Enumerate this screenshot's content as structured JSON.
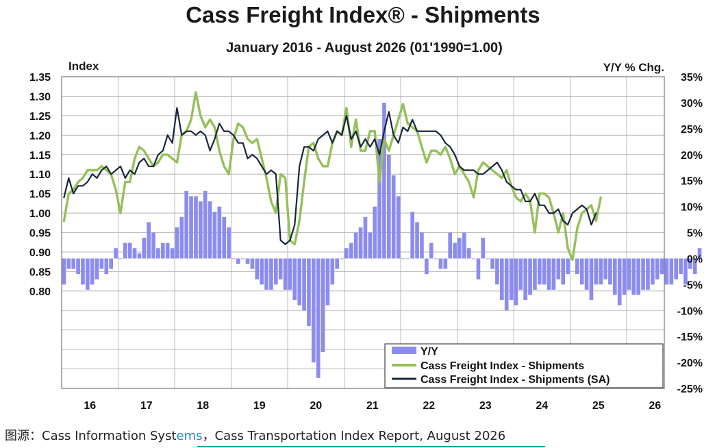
{
  "colors": {
    "yy_bar": "#8c8cf0",
    "shipments": "#94c05a",
    "shipments_sa": "#18263a",
    "grid": "#aaaaaa",
    "source_highlight": "#1e88c8"
  },
  "chart_data": {
    "type": "line",
    "title": "Cass Freight Index® - Shipments",
    "subtitle": "January 2016 - August 2026 (01'1990=1.00)",
    "ylabel_left": "Index",
    "ylabel_right": "Y/Y % Chg.",
    "left_axis": {
      "ticks": [
        "1.35",
        "1.30",
        "1.25",
        "1.20",
        "1.15",
        "1.10",
        "1.05",
        "1.00",
        "0.95",
        "0.90",
        "0.85",
        "0.80"
      ],
      "range": [
        0.55,
        1.35
      ]
    },
    "right_axis": {
      "ticks": [
        "35%",
        "30%",
        "25%",
        "20%",
        "15%",
        "10%",
        "5%",
        "0%",
        "-5%",
        "-10%",
        "-15%",
        "-20%",
        "-25%"
      ],
      "range": [
        -25,
        35
      ]
    },
    "x_tick_labels": [
      "16",
      "17",
      "18",
      "19",
      "20",
      "21",
      "22",
      "23",
      "24",
      "25",
      "26"
    ],
    "legend": [
      "Y/Y",
      "Cass Freight Index - Shipments",
      "Cass Freight Index - Shipments (SA)"
    ],
    "grid": true,
    "legend_position": "bottom-right",
    "series": [
      {
        "name": "Y/Y",
        "type": "bar",
        "axis": "right",
        "values": [
          -5,
          -2,
          -2,
          -3,
          -5,
          -6,
          -5,
          -4,
          -2,
          -3,
          -2,
          2,
          0,
          3,
          3,
          2,
          1,
          4,
          7,
          5,
          2,
          3,
          3,
          2,
          6,
          8,
          13,
          12,
          12,
          11,
          13,
          11,
          9,
          10,
          8,
          6,
          0,
          -1,
          0,
          -1,
          -2,
          -4,
          -5,
          -6,
          -6,
          -5,
          -4,
          -6,
          -6,
          -8,
          -9,
          -10,
          -13,
          -20,
          -23,
          -18,
          -9,
          -5,
          -2,
          0,
          2,
          3,
          5,
          6,
          8,
          5,
          10,
          23,
          30,
          20,
          16,
          12,
          0,
          0,
          9,
          7,
          5,
          -3,
          3,
          0,
          -2,
          -2,
          5,
          3,
          4,
          5,
          2,
          0,
          -4,
          4,
          0,
          -2,
          -5,
          -8,
          -10,
          -8,
          -9,
          -6,
          -8,
          -7,
          -6,
          -5,
          -5,
          -6,
          -6,
          -4,
          -5,
          -3,
          0,
          -3,
          -5,
          -6,
          -8,
          -5,
          -5,
          -4,
          -5,
          -7,
          -9,
          -7,
          -6,
          -7,
          -7,
          -6,
          -6,
          -5,
          -4,
          -3,
          -5,
          -5,
          -4,
          -3,
          -5,
          -2,
          -3,
          2
        ]
      },
      {
        "name": "Cass Freight Index - Shipments",
        "type": "line",
        "axis": "left",
        "values": [
          0.98,
          1.05,
          1.06,
          1.08,
          1.09,
          1.11,
          1.11,
          1.11,
          1.12,
          1.11,
          1.1,
          1.06,
          1.0,
          1.08,
          1.08,
          1.14,
          1.17,
          1.16,
          1.14,
          1.12,
          1.13,
          1.15,
          1.15,
          1.14,
          1.13,
          1.2,
          1.21,
          1.24,
          1.31,
          1.25,
          1.22,
          1.24,
          1.22,
          1.16,
          1.12,
          1.1,
          1.19,
          1.23,
          1.22,
          1.19,
          1.18,
          1.19,
          1.14,
          1.09,
          1.03,
          1.0,
          1.1,
          1.09,
          0.93,
          0.92,
          0.98,
          1.08,
          1.17,
          1.18,
          1.14,
          1.12,
          1.12,
          1.18,
          1.21,
          1.2,
          1.27,
          1.17,
          1.24,
          1.16,
          1.16,
          1.21,
          1.21,
          1.08,
          1.19,
          1.16,
          1.2,
          1.24,
          1.28,
          1.23,
          1.22,
          1.21,
          1.17,
          1.13,
          1.16,
          1.16,
          1.15,
          1.17,
          1.14,
          1.1,
          1.12,
          1.1,
          1.08,
          1.04,
          1.11,
          1.13,
          1.12,
          1.11,
          1.1,
          1.09,
          1.11,
          1.07,
          1.04,
          1.03,
          1.05,
          1.03,
          0.95,
          1.05,
          1.05,
          1.04,
          1.0,
          0.95,
          1.0,
          0.91,
          0.88,
          0.96,
          1.0,
          1.01,
          1.02,
          0.98,
          1.04
        ]
      },
      {
        "name": "Cass Freight Index - Shipments (SA)",
        "type": "line",
        "axis": "left",
        "values": [
          1.04,
          1.09,
          1.05,
          1.07,
          1.07,
          1.08,
          1.1,
          1.09,
          1.11,
          1.12,
          1.1,
          1.11,
          1.12,
          1.09,
          1.11,
          1.1,
          1.13,
          1.14,
          1.12,
          1.12,
          1.15,
          1.16,
          1.2,
          1.18,
          1.27,
          1.2,
          1.21,
          1.21,
          1.2,
          1.21,
          1.2,
          1.16,
          1.19,
          1.23,
          1.21,
          1.21,
          1.2,
          1.18,
          1.18,
          1.14,
          1.15,
          1.14,
          1.12,
          1.1,
          1.11,
          1.1,
          0.93,
          0.92,
          0.93,
          0.97,
          1.12,
          1.17,
          1.17,
          1.16,
          1.19,
          1.2,
          1.21,
          1.18,
          1.21,
          1.2,
          1.25,
          1.19,
          1.21,
          1.17,
          1.19,
          1.17,
          1.19,
          1.15,
          1.21,
          1.26,
          1.2,
          1.18,
          1.22,
          1.21,
          1.24,
          1.21,
          1.21,
          1.21,
          1.21,
          1.21,
          1.2,
          1.18,
          1.17,
          1.15,
          1.12,
          1.11,
          1.11,
          1.11,
          1.1,
          1.1,
          1.11,
          1.12,
          1.13,
          1.11,
          1.08,
          1.07,
          1.06,
          1.06,
          1.03,
          1.03,
          1.05,
          1.02,
          1.02,
          1.0,
          1.0,
          1.01,
          0.98,
          0.97,
          1.0,
          1.01,
          1.02,
          1.01,
          0.97,
          1.0
        ]
      }
    ]
  },
  "source": {
    "prefix": "图源：Cass Information Syst",
    "highlight": "ems",
    "suffix": "，Cass Transportation Index Report, August 2026"
  }
}
